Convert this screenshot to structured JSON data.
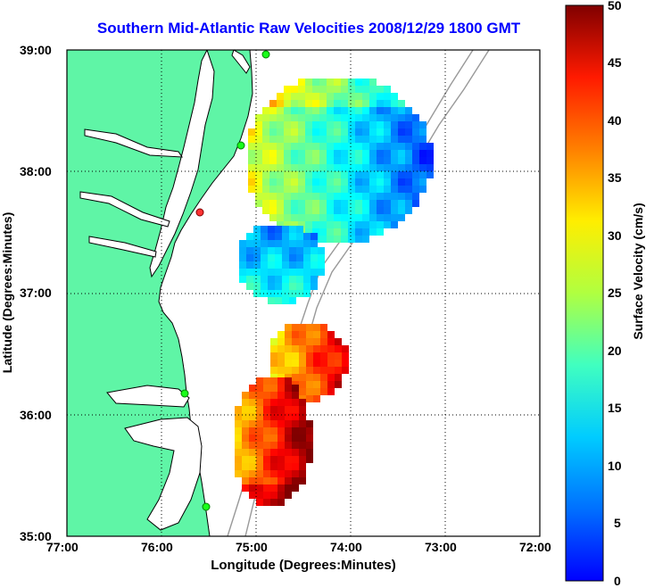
{
  "title": "Southern Mid-Atlantic Raw Velocities 2008/12/29 1800 GMT",
  "xaxis": {
    "label": "Longitude (Degrees:Minutes)",
    "ticks": [
      "77:00",
      "76:00",
      "75:00",
      "74:00",
      "73:00",
      "72:00"
    ]
  },
  "yaxis": {
    "label": "Latitude (Degrees:Minutes)",
    "ticks": [
      "39:00",
      "38:00",
      "37:00",
      "36:00",
      "35:00"
    ]
  },
  "colorbar": {
    "label": "Surface Velocity (cm/s)",
    "ticks": [
      "50",
      "45",
      "40",
      "35",
      "30",
      "25",
      "20",
      "15",
      "10",
      "5",
      "0"
    ],
    "range": [
      0,
      50
    ],
    "colormap": "jet"
  },
  "map": {
    "lon_range": [
      -77,
      -72
    ],
    "lat_range": [
      35,
      39
    ],
    "land_color": "#5ff5a6",
    "grid": "dotted"
  }
}
